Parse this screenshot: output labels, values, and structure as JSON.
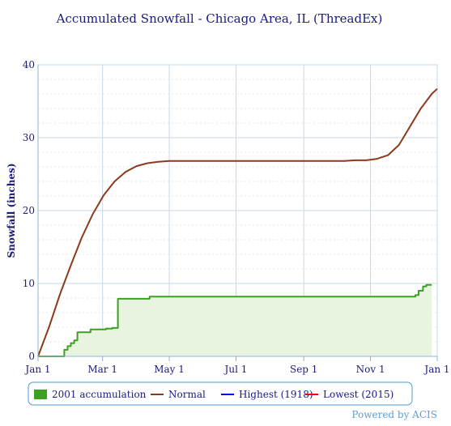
{
  "chart_data": {
    "type": "line",
    "title": "Accumulated Snowfall - Chicago Area, IL (ThreadEx)",
    "ylabel": "Snowfall (inches)",
    "xlabel": "",
    "ylim": [
      0,
      40
    ],
    "yticks": [
      0,
      10,
      20,
      30,
      40
    ],
    "xlim_day": [
      0,
      365
    ],
    "xticks": [
      {
        "day": 0,
        "label": "Jan 1"
      },
      {
        "day": 59,
        "label": "Mar 1"
      },
      {
        "day": 120,
        "label": "May 1"
      },
      {
        "day": 181,
        "label": "Jul 1"
      },
      {
        "day": 243,
        "label": "Sep 1"
      },
      {
        "day": 304,
        "label": "Nov 1"
      },
      {
        "day": 365,
        "label": "Jan 1"
      }
    ],
    "grid": true,
    "legend_placement": "bottom",
    "series": [
      {
        "name": "2001 accumulation",
        "style": "step-area",
        "color": "#3ca020",
        "fill": "#e8f4e0",
        "points": [
          [
            0,
            0
          ],
          [
            24,
            0
          ],
          [
            24,
            0.9
          ],
          [
            27,
            0.9
          ],
          [
            27,
            1.4
          ],
          [
            30,
            1.4
          ],
          [
            30,
            1.8
          ],
          [
            33,
            1.8
          ],
          [
            33,
            2.2
          ],
          [
            36,
            2.2
          ],
          [
            36,
            3.3
          ],
          [
            48,
            3.3
          ],
          [
            48,
            3.7
          ],
          [
            62,
            3.7
          ],
          [
            62,
            3.8
          ],
          [
            68,
            3.8
          ],
          [
            68,
            3.9
          ],
          [
            73,
            3.9
          ],
          [
            73,
            7.9
          ],
          [
            102,
            7.9
          ],
          [
            102,
            8.2
          ],
          [
            345,
            8.2
          ],
          [
            345,
            8.4
          ],
          [
            348,
            8.4
          ],
          [
            348,
            9.0
          ],
          [
            352,
            9.0
          ],
          [
            352,
            9.6
          ],
          [
            355,
            9.6
          ],
          [
            355,
            9.8
          ],
          [
            360,
            9.8
          ]
        ]
      },
      {
        "name": "Normal",
        "style": "line",
        "color": "#8b3a1a",
        "points": [
          [
            0,
            0
          ],
          [
            10,
            4
          ],
          [
            20,
            8.5
          ],
          [
            30,
            12.5
          ],
          [
            40,
            16.3
          ],
          [
            50,
            19.5
          ],
          [
            60,
            22.1
          ],
          [
            70,
            24.0
          ],
          [
            80,
            25.3
          ],
          [
            90,
            26.1
          ],
          [
            100,
            26.5
          ],
          [
            110,
            26.7
          ],
          [
            120,
            26.8
          ],
          [
            200,
            26.8
          ],
          [
            280,
            26.8
          ],
          [
            290,
            26.9
          ],
          [
            300,
            26.9
          ],
          [
            310,
            27.1
          ],
          [
            320,
            27.6
          ],
          [
            330,
            29.0
          ],
          [
            340,
            31.5
          ],
          [
            350,
            34.0
          ],
          [
            360,
            36.0
          ],
          [
            365,
            36.7
          ]
        ]
      },
      {
        "name": "Highest (1918)",
        "style": "line",
        "color": "#0000ff",
        "points": []
      },
      {
        "name": "Lowest (2015)",
        "style": "line",
        "color": "#ff0000",
        "points": []
      }
    ],
    "credit": "Powered by ACIS"
  }
}
